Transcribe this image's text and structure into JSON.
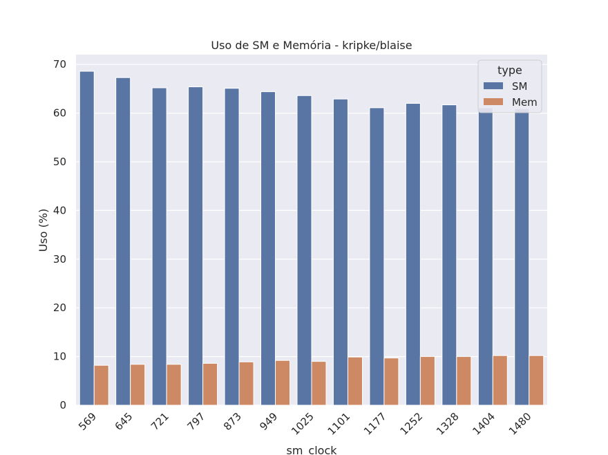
{
  "chart_data": {
    "type": "bar",
    "title": "Uso de SM e Memória - kripke/blaise",
    "xlabel": "sm_clock",
    "ylabel": "Uso (%)",
    "categories": [
      "569",
      "645",
      "721",
      "797",
      "873",
      "949",
      "1025",
      "1101",
      "1177",
      "1252",
      "1328",
      "1404",
      "1480"
    ],
    "series": [
      {
        "name": "SM",
        "color": "#5975a4",
        "values": [
          68.6,
          67.3,
          65.2,
          65.4,
          65.1,
          64.4,
          63.6,
          62.9,
          61.1,
          62.0,
          61.7,
          61.1,
          60.9
        ]
      },
      {
        "name": "Mem",
        "color": "#cc8963",
        "values": [
          8.2,
          8.4,
          8.4,
          8.6,
          8.9,
          9.2,
          9.0,
          9.9,
          9.7,
          10.0,
          10.0,
          10.2,
          10.2
        ]
      }
    ],
    "ylim": [
      0,
      72
    ],
    "yticks": [
      "0",
      "10",
      "20",
      "30",
      "40",
      "50",
      "60",
      "70"
    ],
    "grid": true,
    "legend": {
      "title": "type",
      "placement": "top-right"
    }
  }
}
